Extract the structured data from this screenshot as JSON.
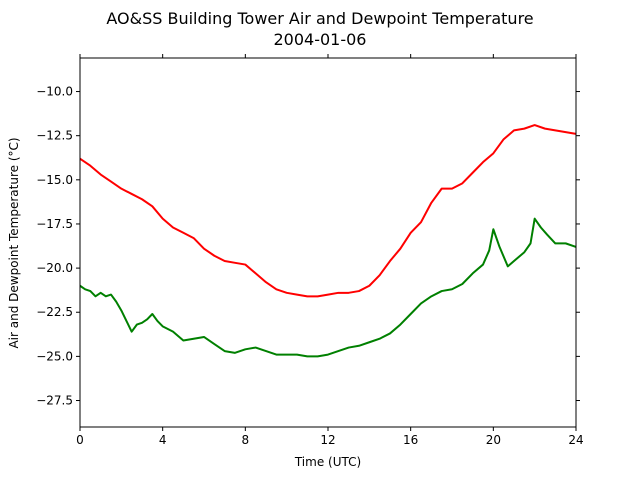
{
  "chart_data": {
    "type": "line",
    "title": "AO&SS Building Tower Air and Dewpoint Temperature",
    "subtitle": "2004-01-06",
    "xlabel": "Time (UTC)",
    "ylabel": "Air and Dewpoint Temperature (°C)",
    "xlim": [
      0,
      24
    ],
    "ylim": [
      -29,
      -8.1
    ],
    "x_ticks": [
      0,
      4,
      8,
      12,
      16,
      20,
      24
    ],
    "y_ticks": [
      -27.5,
      -25.0,
      -22.5,
      -20.0,
      -17.5,
      -15.0,
      -12.5,
      -10.0
    ],
    "y_tick_labels": [
      "−27.5",
      "−25.0",
      "−22.5",
      "−20.0",
      "−17.5",
      "−15.0",
      "−12.5",
      "−10.0"
    ],
    "grid": false,
    "legend": "none",
    "series": [
      {
        "color": "#ff0000",
        "x": [
          0,
          0.5,
          1,
          1.5,
          2,
          2.5,
          3,
          3.5,
          4,
          4.5,
          5,
          5.5,
          6,
          6.5,
          7,
          7.5,
          8,
          8.3,
          8.6,
          9,
          9.5,
          10,
          10.5,
          11,
          11.5,
          12,
          12.5,
          13,
          13.5,
          14,
          14.5,
          15,
          15.5,
          16,
          16.5,
          17,
          17.5,
          18,
          18.5,
          19,
          19.5,
          20,
          20.5,
          21,
          21.5,
          22,
          22.5,
          23,
          23.5,
          24
        ],
        "y": [
          -13.8,
          -14.2,
          -14.7,
          -15.1,
          -15.5,
          -15.8,
          -16.1,
          -16.5,
          -17.2,
          -17.7,
          -18.0,
          -18.3,
          -18.9,
          -19.3,
          -19.6,
          -19.7,
          -19.8,
          -20.1,
          -20.4,
          -20.8,
          -21.2,
          -21.4,
          -21.5,
          -21.6,
          -21.6,
          -21.5,
          -21.4,
          -21.4,
          -21.3,
          -21.0,
          -20.4,
          -19.6,
          -18.9,
          -18.0,
          -17.4,
          -16.3,
          -15.5,
          -15.5,
          -15.2,
          -14.6,
          -14.0,
          -13.5,
          -12.7,
          -12.2,
          -12.1,
          -11.9,
          -12.1,
          -12.2,
          -12.3,
          -12.4
        ]
      },
      {
        "color": "#008000",
        "x": [
          0,
          0.25,
          0.5,
          0.75,
          1,
          1.25,
          1.5,
          1.75,
          2,
          2.25,
          2.5,
          2.75,
          3,
          3.25,
          3.5,
          3.75,
          4,
          4.5,
          5,
          5.5,
          6,
          6.5,
          7,
          7.5,
          8,
          8.5,
          9,
          9.5,
          10,
          10.5,
          11,
          11.5,
          12,
          12.5,
          13,
          13.5,
          14,
          14.5,
          15,
          15.5,
          16,
          16.5,
          17,
          17.5,
          18,
          18.5,
          19,
          19.5,
          19.8,
          20,
          20.3,
          20.7,
          21,
          21.5,
          21.8,
          22,
          22.3,
          22.6,
          23,
          23.5,
          24
        ],
        "y": [
          -21.0,
          -21.2,
          -21.3,
          -21.6,
          -21.4,
          -21.6,
          -21.5,
          -21.9,
          -22.4,
          -23.0,
          -23.6,
          -23.2,
          -23.1,
          -22.9,
          -22.6,
          -23.0,
          -23.3,
          -23.6,
          -24.1,
          -24.0,
          -23.9,
          -24.3,
          -24.7,
          -24.8,
          -24.6,
          -24.5,
          -24.7,
          -24.9,
          -24.9,
          -24.9,
          -25.0,
          -25.0,
          -24.9,
          -24.7,
          -24.5,
          -24.4,
          -24.2,
          -24.0,
          -23.7,
          -23.2,
          -22.6,
          -22.0,
          -21.6,
          -21.3,
          -21.2,
          -20.9,
          -20.3,
          -19.8,
          -19.0,
          -17.8,
          -18.8,
          -19.9,
          -19.6,
          -19.1,
          -18.6,
          -17.2,
          -17.7,
          -18.1,
          -18.6,
          -18.6,
          -18.8
        ]
      }
    ]
  }
}
